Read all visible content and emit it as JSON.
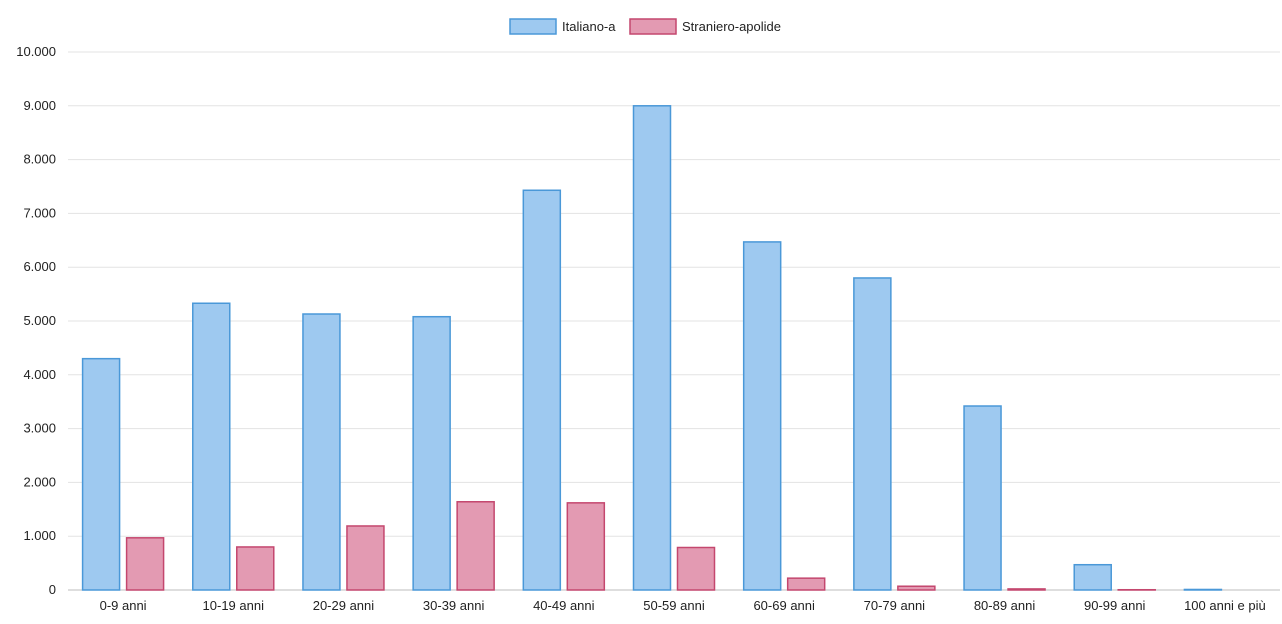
{
  "chart_data": {
    "type": "bar",
    "categories": [
      "0-9 anni",
      "10-19 anni",
      "20-29 anni",
      "30-39 anni",
      "40-49 anni",
      "50-59 anni",
      "60-69 anni",
      "70-79 anni",
      "80-89 anni",
      "90-99 anni",
      "100 anni e più"
    ],
    "series": [
      {
        "name": "Italiano-a",
        "values": [
          4300,
          5330,
          5130,
          5080,
          7430,
          9000,
          6470,
          5800,
          3420,
          470,
          10
        ],
        "color": "#9ec9f0",
        "stroke": "#4a98d8"
      },
      {
        "name": "Straniero-apolide",
        "values": [
          970,
          800,
          1190,
          1640,
          1620,
          790,
          220,
          70,
          20,
          5,
          0
        ],
        "color": "#e39ab2",
        "stroke": "#c4476e"
      }
    ],
    "title": "",
    "xlabel": "",
    "ylabel": "",
    "ylim": [
      0,
      10000
    ],
    "yticks": [
      0,
      1000,
      2000,
      3000,
      4000,
      5000,
      6000,
      7000,
      8000,
      9000,
      10000
    ],
    "ytick_labels": [
      "0",
      "1.000",
      "2.000",
      "3.000",
      "4.000",
      "5.000",
      "6.000",
      "7.000",
      "8.000",
      "9.000",
      "10.000"
    ],
    "grid": true,
    "legend_position": "top-center"
  }
}
